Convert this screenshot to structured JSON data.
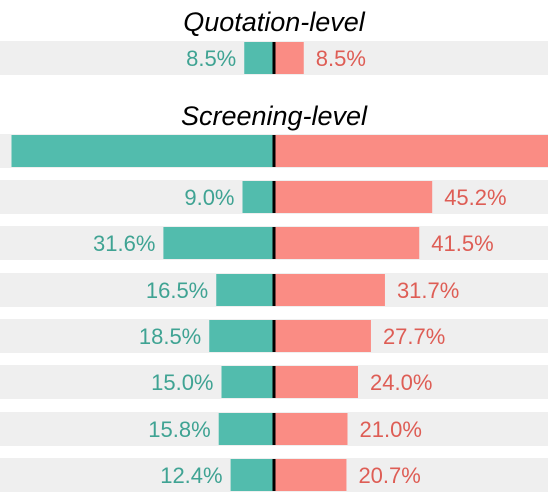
{
  "chart_data": {
    "type": "bar",
    "orientation": "horizontal-diverging",
    "colors": {
      "left": "#52bcad",
      "right": "#fa8c84",
      "left_text": "#3fa393",
      "right_text": "#de5d55",
      "row_background": "#efefef",
      "center_line": "#000000"
    },
    "panels": [
      {
        "title": "Quotation-level",
        "rows": [
          {
            "left": 8.5,
            "left_label": "8.5%",
            "right": 8.5,
            "right_label": "8.5%"
          }
        ]
      },
      {
        "title": "Screening-level",
        "rows": [
          {
            "left": 75,
            "left_label": "",
            "right": 81,
            "right_label": ""
          },
          {
            "left": 9.0,
            "left_label": "9.0%",
            "right": 45.2,
            "right_label": "45.2%"
          },
          {
            "left": 31.6,
            "left_label": "31.6%",
            "right": 41.5,
            "right_label": "41.5%"
          },
          {
            "left": 16.5,
            "left_label": "16.5%",
            "right": 31.7,
            "right_label": "31.7%"
          },
          {
            "left": 18.5,
            "left_label": "18.5%",
            "right": 27.7,
            "right_label": "27.7%"
          },
          {
            "left": 15.0,
            "left_label": "15.0%",
            "right": 24.0,
            "right_label": "24.0%"
          },
          {
            "left": 15.8,
            "left_label": "15.8%",
            "right": 21.0,
            "right_label": "21.0%"
          },
          {
            "left": 12.4,
            "left_label": "12.4%",
            "right": 20.7,
            "right_label": "20.7%"
          }
        ]
      }
    ]
  }
}
